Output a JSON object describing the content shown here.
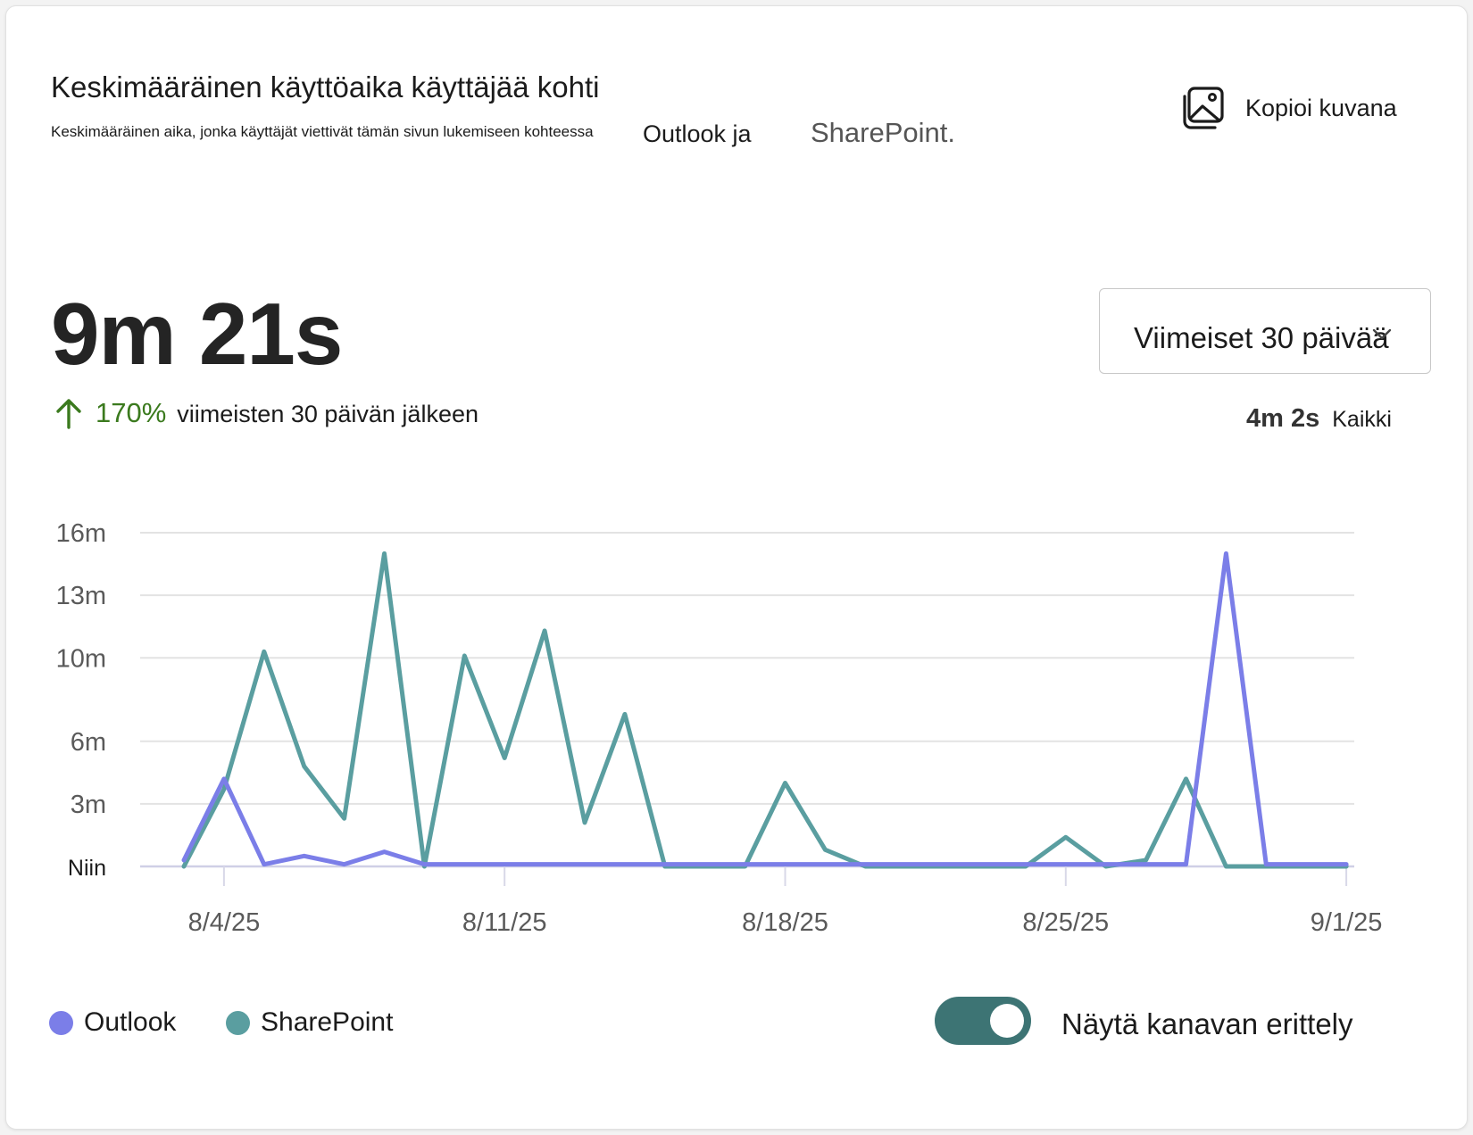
{
  "header": {
    "title": "Keskimääräinen käyttöaika käyttäjää kohti",
    "subtitle": "Keskimääräinen aika, jonka käyttäjät viettivät tämän sivun lukemiseen kohteessa",
    "subtitle_outlook": "Outlook ja",
    "subtitle_sharepoint": "SharePoint.",
    "copy_image_label": "Kopioi kuvana",
    "copy_icon": "image-icon"
  },
  "summary": {
    "value": "9m 21s",
    "trend_direction": "up",
    "trend_percent": "170%",
    "trend_text": "viimeisten 30 päivän jälkeen",
    "trend_color": "#3b7a1e"
  },
  "filter": {
    "range_label": "Viimeiset 30 päivää",
    "compare_value": "4m 2s",
    "compare_label": "Kaikki"
  },
  "toggle": {
    "label": "Näytä kanavan erittely",
    "on": true,
    "color": "#3d7474"
  },
  "chart_data": {
    "type": "line",
    "y_ticks": [
      "Niin",
      "3m",
      "6m",
      "10m",
      "13m",
      "16m"
    ],
    "y_tick_values": [
      0,
      3,
      6,
      10,
      13,
      16
    ],
    "ylim": [
      0,
      16
    ],
    "x_ticks": [
      "8/4/25",
      "8/11/25",
      "8/18/25",
      "8/25/25",
      "9/1/25"
    ],
    "x_tick_dates": [
      "2025-08-04",
      "2025-08-11",
      "2025-08-18",
      "2025-08-25",
      "2025-09-01"
    ],
    "x": [
      "2025-08-03",
      "2025-08-04",
      "2025-08-05",
      "2025-08-06",
      "2025-08-07",
      "2025-08-08",
      "2025-08-09",
      "2025-08-10",
      "2025-08-11",
      "2025-08-12",
      "2025-08-13",
      "2025-08-14",
      "2025-08-15",
      "2025-08-16",
      "2025-08-17",
      "2025-08-18",
      "2025-08-19",
      "2025-08-20",
      "2025-08-21",
      "2025-08-22",
      "2025-08-23",
      "2025-08-24",
      "2025-08-25",
      "2025-08-26",
      "2025-08-27",
      "2025-08-28",
      "2025-08-29",
      "2025-08-30",
      "2025-08-31",
      "2025-09-01"
    ],
    "grid": true,
    "legend_position": "bottom-left",
    "series": [
      {
        "name": "Outlook",
        "color": "#7b7ee8",
        "values": [
          0.3,
          4.2,
          0.1,
          0.5,
          0.1,
          0.7,
          0.1,
          0.1,
          0.1,
          0.1,
          0.1,
          0.1,
          0.1,
          0.1,
          0.1,
          0.1,
          0.1,
          0.1,
          0.1,
          0.1,
          0.1,
          0.1,
          0.1,
          0.1,
          0.1,
          0.1,
          15.0,
          0.1,
          0.1,
          0.1
        ]
      },
      {
        "name": "SharePoint",
        "color": "#5a9ea0",
        "values": [
          0.0,
          3.7,
          10.3,
          4.8,
          2.3,
          15.0,
          0.0,
          10.1,
          5.2,
          11.3,
          2.1,
          7.3,
          0.0,
          0.0,
          0.0,
          4.0,
          0.8,
          0.0,
          0.0,
          0.0,
          0.0,
          0.0,
          1.4,
          0.0,
          0.3,
          4.2,
          0.0,
          0.0,
          0.0,
          0.0
        ]
      }
    ]
  }
}
